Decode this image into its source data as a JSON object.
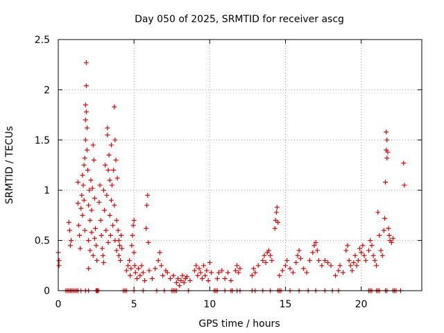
{
  "chart_data": {
    "type": "scatter",
    "title": "Day 050 of 2025, SRMTID for receiver ascg",
    "xlabel": "GPS time / hours",
    "ylabel": "SRMTID / TECUs",
    "xlim": [
      0,
      24
    ],
    "ylim": [
      0,
      2.5
    ],
    "x_ticks": [
      0,
      5,
      10,
      15,
      20
    ],
    "y_ticks": [
      0,
      0.5,
      1,
      1.5,
      2,
      2.5
    ],
    "x_tick_labels": [
      "0",
      "5",
      "10",
      "15",
      "20"
    ],
    "y_tick_labels": [
      "0",
      "0.5",
      "1",
      "1.5",
      "2",
      "2.5"
    ],
    "grid": true,
    "marker": "+",
    "color": "#e00000",
    "series": [
      {
        "name": "SRMTID",
        "points": [
          [
            0.0,
            0.38
          ],
          [
            0.05,
            0.3
          ],
          [
            0.05,
            0.25
          ],
          [
            0.7,
            0.68
          ],
          [
            0.75,
            0.6
          ],
          [
            0.8,
            0.45
          ],
          [
            0.85,
            0.5
          ],
          [
            1.3,
            0.87
          ],
          [
            1.3,
            1.08
          ],
          [
            1.35,
            0.65
          ],
          [
            1.4,
            0.55
          ],
          [
            1.45,
            0.42
          ],
          [
            1.5,
            0.82
          ],
          [
            1.55,
            0.95
          ],
          [
            1.6,
            1.15
          ],
          [
            1.6,
            0.75
          ],
          [
            1.65,
            1.05
          ],
          [
            1.7,
            0.9
          ],
          [
            1.7,
            1.25
          ],
          [
            1.75,
            1.32
          ],
          [
            1.75,
            0.6
          ],
          [
            1.8,
            1.5
          ],
          [
            1.8,
            1.7
          ],
          [
            1.8,
            1.85
          ],
          [
            1.85,
            2.27
          ],
          [
            1.85,
            1.78
          ],
          [
            1.85,
            2.04
          ],
          [
            1.9,
            1.62
          ],
          [
            1.9,
            1.4
          ],
          [
            1.95,
            1.2
          ],
          [
            2.0,
            0.85
          ],
          [
            2.0,
            0.5
          ],
          [
            2.0,
            0.22
          ],
          [
            2.05,
            1.0
          ],
          [
            2.1,
            0.7
          ],
          [
            2.1,
            0.4
          ],
          [
            2.15,
            1.1
          ],
          [
            2.2,
            0.8
          ],
          [
            2.2,
            0.58
          ],
          [
            2.25,
            1.02
          ],
          [
            2.3,
            0.35
          ],
          [
            2.3,
            1.45
          ],
          [
            2.35,
            1.3
          ],
          [
            2.4,
            0.92
          ],
          [
            2.4,
            0.52
          ],
          [
            2.45,
            0.62
          ],
          [
            2.5,
            0.45
          ],
          [
            2.55,
            0.3
          ],
          [
            2.7,
            0.88
          ],
          [
            2.75,
            1.05
          ],
          [
            2.8,
            0.7
          ],
          [
            2.85,
            0.55
          ],
          [
            2.9,
            0.42
          ],
          [
            2.95,
            0.35
          ],
          [
            3.0,
            0.28
          ],
          [
            3.0,
            1.0
          ],
          [
            3.05,
            0.8
          ],
          [
            3.1,
            1.25
          ],
          [
            3.15,
            0.6
          ],
          [
            3.2,
            0.95
          ],
          [
            3.25,
            1.55
          ],
          [
            3.25,
            1.62
          ],
          [
            3.3,
            1.2
          ],
          [
            3.3,
            0.48
          ],
          [
            3.35,
            1.35
          ],
          [
            3.4,
            0.75
          ],
          [
            3.4,
            1.1
          ],
          [
            3.45,
            0.55
          ],
          [
            3.5,
            0.9
          ],
          [
            3.5,
            1.45
          ],
          [
            3.55,
            1.05
          ],
          [
            3.6,
            0.65
          ],
          [
            3.65,
            1.2
          ],
          [
            3.7,
            1.83
          ],
          [
            3.7,
            0.85
          ],
          [
            3.75,
            1.5
          ],
          [
            3.75,
            0.5
          ],
          [
            3.8,
            1.3
          ],
          [
            3.85,
            0.7
          ],
          [
            3.85,
            0.4
          ],
          [
            3.9,
            1.12
          ],
          [
            3.95,
            0.6
          ],
          [
            4.0,
            0.5
          ],
          [
            4.0,
            0.35
          ],
          [
            4.05,
            0.45
          ],
          [
            4.1,
            0.3
          ],
          [
            4.15,
            0.55
          ],
          [
            4.2,
            0.42
          ],
          [
            4.5,
            0.2
          ],
          [
            4.6,
            0.25
          ],
          [
            4.7,
            0.3
          ],
          [
            4.75,
            0.15
          ],
          [
            4.8,
            0.22
          ],
          [
            4.85,
            0.45
          ],
          [
            4.9,
            0.55
          ],
          [
            4.95,
            0.65
          ],
          [
            5.0,
            0.7
          ],
          [
            5.0,
            0.38
          ],
          [
            5.05,
            0.25
          ],
          [
            5.1,
            0.18
          ],
          [
            5.2,
            0.12
          ],
          [
            5.3,
            0.22
          ],
          [
            5.4,
            0.15
          ],
          [
            5.5,
            0.25
          ],
          [
            5.6,
            0.18
          ],
          [
            5.7,
            0.1
          ],
          [
            5.8,
            0.62
          ],
          [
            5.85,
            0.85
          ],
          [
            5.9,
            0.95
          ],
          [
            5.95,
            0.48
          ],
          [
            6.0,
            0.2
          ],
          [
            6.2,
            0.12
          ],
          [
            6.4,
            0.22
          ],
          [
            6.6,
            0.3
          ],
          [
            6.7,
            0.38
          ],
          [
            6.8,
            0.25
          ],
          [
            6.9,
            0.15
          ],
          [
            7.1,
            0.2
          ],
          [
            7.2,
            0.18
          ],
          [
            7.4,
            0.12
          ],
          [
            7.6,
            0.15
          ],
          [
            7.8,
            0.08
          ],
          [
            7.9,
            0.12
          ],
          [
            8.0,
            0.05
          ],
          [
            8.1,
            0.1
          ],
          [
            8.2,
            0.15
          ],
          [
            8.3,
            0.08
          ],
          [
            8.4,
            0.12
          ],
          [
            8.5,
            0.14
          ],
          [
            8.7,
            0.1
          ],
          [
            9.0,
            0.2
          ],
          [
            9.1,
            0.25
          ],
          [
            9.2,
            0.15
          ],
          [
            9.3,
            0.22
          ],
          [
            9.4,
            0.18
          ],
          [
            9.5,
            0.12
          ],
          [
            9.6,
            0.25
          ],
          [
            9.7,
            0.15
          ],
          [
            9.8,
            0.2
          ],
          [
            9.9,
            0.1
          ],
          [
            10.0,
            0.28
          ],
          [
            10.1,
            0.18
          ],
          [
            10.5,
            0.12
          ],
          [
            10.6,
            0.18
          ],
          [
            10.8,
            0.2
          ],
          [
            11.0,
            0.12
          ],
          [
            11.2,
            0.18
          ],
          [
            11.4,
            0.1
          ],
          [
            11.7,
            0.2
          ],
          [
            11.8,
            0.25
          ],
          [
            11.9,
            0.18
          ],
          [
            12.0,
            0.22
          ],
          [
            12.8,
            0.15
          ],
          [
            12.9,
            0.22
          ],
          [
            13.0,
            0.18
          ],
          [
            13.2,
            0.25
          ],
          [
            13.5,
            0.3
          ],
          [
            13.6,
            0.35
          ],
          [
            13.7,
            0.28
          ],
          [
            13.8,
            0.38
          ],
          [
            13.9,
            0.4
          ],
          [
            14.0,
            0.35
          ],
          [
            14.1,
            0.3
          ],
          [
            14.3,
            0.62
          ],
          [
            14.35,
            0.7
          ],
          [
            14.4,
            0.78
          ],
          [
            14.45,
            0.83
          ],
          [
            14.5,
            0.68
          ],
          [
            14.6,
            0.15
          ],
          [
            14.8,
            0.2
          ],
          [
            15.0,
            0.25
          ],
          [
            15.1,
            0.3
          ],
          [
            15.3,
            0.22
          ],
          [
            15.5,
            0.18
          ],
          [
            15.7,
            0.28
          ],
          [
            15.8,
            0.35
          ],
          [
            15.9,
            0.4
          ],
          [
            16.0,
            0.32
          ],
          [
            16.2,
            0.22
          ],
          [
            16.4,
            0.18
          ],
          [
            16.6,
            0.3
          ],
          [
            16.8,
            0.38
          ],
          [
            16.9,
            0.45
          ],
          [
            17.0,
            0.48
          ],
          [
            17.1,
            0.4
          ],
          [
            17.2,
            0.3
          ],
          [
            17.4,
            0.25
          ],
          [
            17.6,
            0.3
          ],
          [
            17.8,
            0.28
          ],
          [
            18.0,
            0.25
          ],
          [
            18.3,
            0.15
          ],
          [
            18.5,
            0.2
          ],
          [
            18.6,
            0.25
          ],
          [
            18.8,
            0.18
          ],
          [
            19.0,
            0.4
          ],
          [
            19.1,
            0.45
          ],
          [
            19.2,
            0.3
          ],
          [
            19.3,
            0.25
          ],
          [
            19.4,
            0.2
          ],
          [
            19.5,
            0.28
          ],
          [
            19.6,
            0.35
          ],
          [
            19.7,
            0.25
          ],
          [
            19.8,
            0.3
          ],
          [
            19.9,
            0.42
          ],
          [
            20.0,
            0.38
          ],
          [
            20.1,
            0.45
          ],
          [
            20.2,
            0.35
          ],
          [
            20.3,
            0.3
          ],
          [
            20.5,
            0.4
          ],
          [
            20.6,
            0.5
          ],
          [
            20.7,
            0.45
          ],
          [
            20.8,
            0.35
          ],
          [
            20.9,
            0.3
          ],
          [
            21.0,
            0.25
          ],
          [
            21.1,
            0.78
          ],
          [
            21.2,
            0.55
          ],
          [
            21.3,
            0.4
          ],
          [
            21.4,
            0.35
          ],
          [
            21.5,
            0.6
          ],
          [
            21.55,
            0.72
          ],
          [
            21.6,
            1.08
          ],
          [
            21.65,
            1.4
          ],
          [
            21.65,
            1.58
          ],
          [
            21.7,
            1.32
          ],
          [
            21.7,
            1.5
          ],
          [
            21.75,
            1.38
          ],
          [
            21.8,
            0.62
          ],
          [
            21.85,
            0.55
          ],
          [
            21.9,
            0.5
          ],
          [
            22.0,
            0.48
          ],
          [
            22.1,
            0.52
          ],
          [
            22.8,
            1.27
          ],
          [
            22.85,
            1.05
          ]
        ],
        "zero_markers": [
          0.5,
          0.6,
          0.7,
          0.8,
          0.9,
          1.0,
          1.1,
          1.2,
          1.3,
          1.5,
          1.8,
          2.0,
          2.5,
          2.55,
          2.6,
          2.65,
          4.3,
          4.4,
          4.5,
          5.0,
          5.6,
          6.5,
          7.0,
          7.5,
          7.6,
          7.7,
          7.8,
          8.6,
          10.3,
          10.4,
          10.5,
          11.0,
          11.4,
          11.5,
          11.8,
          12.0,
          12.8,
          13.0,
          13.5,
          14.0,
          14.5,
          14.6,
          14.7,
          15.3,
          15.9,
          16.5,
          17.0,
          17.6,
          18.1,
          18.5,
          20.5,
          20.6,
          20.7,
          21.0,
          21.1,
          21.2,
          21.6,
          21.7,
          22.1,
          22.2,
          22.3,
          22.6
        ]
      }
    ]
  }
}
